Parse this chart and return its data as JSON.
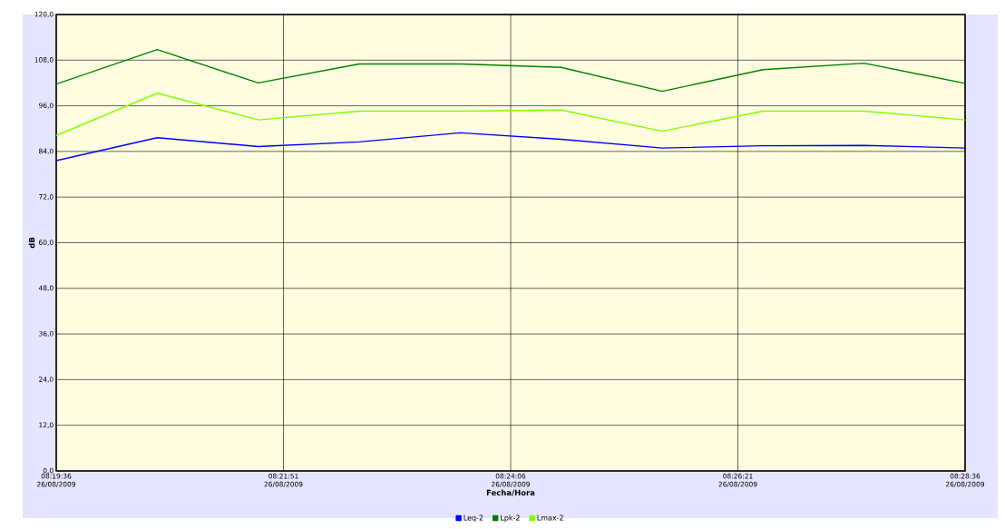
{
  "chart_data": {
    "type": "line",
    "xlabel": "Fecha/Hora",
    "ylabel": "dB",
    "x": [
      "2009-08-26T08:19:36",
      "2009-08-26T08:20:36",
      "2009-08-26T08:21:36",
      "2009-08-26T08:22:36",
      "2009-08-26T08:23:36",
      "2009-08-26T08:24:36",
      "2009-08-26T08:25:36",
      "2009-08-26T08:26:36",
      "2009-08-26T08:27:36",
      "2009-08-26T08:28:36"
    ],
    "series": [
      {
        "name": "Leq-2",
        "color": "#0000ff",
        "values": [
          81.6,
          87.6,
          85.3,
          86.5,
          88.9,
          87.2,
          84.9,
          85.5,
          85.6,
          84.9
        ]
      },
      {
        "name": "Lpk-2",
        "color": "#008000",
        "values": [
          101.7,
          110.8,
          102.0,
          107.0,
          107.0,
          106.1,
          99.8,
          105.5,
          107.2,
          101.9
        ]
      },
      {
        "name": "Lmax-2",
        "color": "#80ff00",
        "values": [
          88.2,
          99.3,
          92.3,
          94.6,
          94.6,
          94.9,
          89.3,
          94.6,
          94.6,
          92.3
        ]
      }
    ],
    "xlim": [
      "2009-08-26T08:19:36",
      "2009-08-26T08:28:36"
    ],
    "xticks": [
      {
        "value": "2009-08-26T08:19:36",
        "label": "08:19:36 26/08/2009"
      },
      {
        "value": "2009-08-26T08:21:51",
        "label": "08:21:51 26/08/2009"
      },
      {
        "value": "2009-08-26T08:24:06",
        "label": "08:24:06 26/08/2009"
      },
      {
        "value": "2009-08-26T08:26:21",
        "label": "08:26:21 26/08/2009"
      },
      {
        "value": "2009-08-26T08:28:36",
        "label": "08:28:36 26/08/2009"
      }
    ],
    "ylim": [
      0,
      120
    ],
    "yticks": [
      {
        "value": 0,
        "label": "0,0"
      },
      {
        "value": 12,
        "label": "12,0"
      },
      {
        "value": 24,
        "label": "24,0"
      },
      {
        "value": 36,
        "label": "36,0"
      },
      {
        "value": 48,
        "label": "48,0"
      },
      {
        "value": 60,
        "label": "60,0"
      },
      {
        "value": 72,
        "label": "72,0"
      },
      {
        "value": 84,
        "label": "84,0"
      },
      {
        "value": 96,
        "label": "96,0"
      },
      {
        "value": 108,
        "label": "108,0"
      },
      {
        "value": 120,
        "label": "120,0"
      }
    ],
    "grid": true,
    "legend": "bottom",
    "marker": "none",
    "line_style": "solid"
  }
}
